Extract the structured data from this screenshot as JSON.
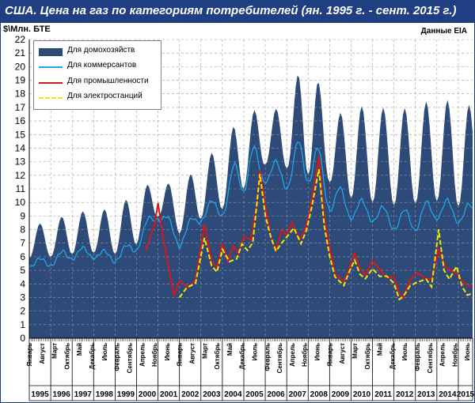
{
  "header": {
    "title": "США. Цена на газ по категориям потребителей (ян. 1995 г. - сент. 2015 г.)",
    "unit": "$\\Млн. БТЕ",
    "source": "Данные EIA"
  },
  "colors": {
    "title_bg": "#1f3f82",
    "households": "#2e4a78",
    "commercial": "#1ea8e8",
    "industrial": "#d61818",
    "power": "#f0e800",
    "grid": "#9a9a9a"
  },
  "chart_data": {
    "type": "area",
    "x_start": "1995-01",
    "x_end": "2015-09",
    "ylim": [
      0,
      22
    ],
    "yticks": [
      0,
      1,
      2,
      3,
      4,
      5,
      6,
      7,
      8,
      9,
      10,
      11,
      12,
      13,
      14,
      15,
      16,
      17,
      18,
      19,
      20,
      21,
      22
    ],
    "grid": true,
    "legend": "top-left",
    "month_tick_labels": [
      "Январь",
      "Август",
      "Март",
      "Октябрь",
      "Май",
      "Декабрь",
      "Июль",
      "Февраль",
      "Сентябрь",
      "Апрель",
      "Ноябрь",
      "Июнь",
      "Январь",
      "Август",
      "Март",
      "Октябрь",
      "Май",
      "Декабрь",
      "Июль",
      "Февраль",
      "Сентябрь",
      "Апрель",
      "Ноябрь",
      "Июнь",
      "Январь",
      "Август",
      "Март",
      "Октябрь",
      "Май",
      "Декабрь",
      "Июль",
      "Февраль",
      "Сентябрь",
      "Апрель",
      "Ноябрь",
      "Июнь"
    ],
    "year_labels": [
      "1995",
      "1996",
      "1997",
      "1998",
      "1999",
      "2000",
      "2001",
      "2002",
      "2003",
      "2004",
      "2005",
      "2006",
      "2007",
      "2008",
      "2009",
      "2010",
      "2011",
      "2012",
      "2013",
      "2014",
      "2015"
    ],
    "series": [
      {
        "name": "Для домохозяйств",
        "kind": "area",
        "winter": [
          5.9,
          6.0,
          6.2,
          6.3,
          6.2,
          6.9,
          9.0,
          7.7,
          8.8,
          9.5,
          11.0,
          12.8,
          12.5,
          12.0,
          11.5,
          10.3,
          10.0,
          9.8,
          9.9,
          10.1,
          9.7
        ],
        "summer": [
          8.4,
          8.5,
          9.4,
          9.3,
          9.7,
          10.7,
          11.9,
          10.9,
          13.2,
          14.1,
          17.0,
          16.6,
          17.2,
          21.5,
          16.1,
          17.1,
          17.1,
          16.9,
          17.0,
          17.9,
          17.2
        ]
      },
      {
        "name": "Для коммерсантов",
        "kind": "line",
        "base": [
          5.2,
          5.3,
          5.8,
          5.9,
          5.6,
          6.4,
          8.8,
          6.7,
          8.6,
          9.0,
          10.8,
          11.5,
          11.0,
          11.5,
          9.4,
          8.8,
          8.6,
          8.0,
          7.9,
          8.8,
          8.5
        ],
        "peak": [
          5.8,
          6.0,
          6.8,
          6.6,
          6.3,
          7.4,
          10.1,
          7.6,
          9.9,
          10.4,
          15.0,
          13.2,
          12.9,
          16.1,
          11.8,
          10.4,
          10.0,
          9.4,
          9.6,
          10.5,
          9.9
        ]
      },
      {
        "name": "Для промышленности",
        "kind": "line",
        "points": [
          [
            "2000-06",
            6.4
          ],
          [
            "2000-11",
            8.2
          ],
          [
            "2001-01",
            10.1
          ],
          [
            "2001-04",
            7.2
          ],
          [
            "2001-08",
            4.4
          ],
          [
            "2001-10",
            3.3
          ],
          [
            "2002-01",
            4.1
          ],
          [
            "2002-06",
            3.8
          ],
          [
            "2002-10",
            4.3
          ],
          [
            "2003-03",
            8.2
          ],
          [
            "2003-07",
            5.8
          ],
          [
            "2003-10",
            5.2
          ],
          [
            "2004-01",
            6.9
          ],
          [
            "2004-04",
            5.8
          ],
          [
            "2004-07",
            6.7
          ],
          [
            "2004-10",
            6.2
          ],
          [
            "2005-01",
            7.6
          ],
          [
            "2005-05",
            7.1
          ],
          [
            "2005-08",
            9.7
          ],
          [
            "2005-10",
            12.4
          ],
          [
            "2006-01",
            9.6
          ],
          [
            "2006-04",
            7.6
          ],
          [
            "2006-07",
            6.4
          ],
          [
            "2006-10",
            7.9
          ],
          [
            "2007-01",
            7.8
          ],
          [
            "2007-04",
            8.4
          ],
          [
            "2007-08",
            7.3
          ],
          [
            "2007-11",
            8.0
          ],
          [
            "2008-02",
            9.2
          ],
          [
            "2008-07",
            13.5
          ],
          [
            "2008-10",
            8.9
          ],
          [
            "2009-01",
            6.5
          ],
          [
            "2009-04",
            4.9
          ],
          [
            "2009-09",
            4.1
          ],
          [
            "2009-12",
            5.1
          ],
          [
            "2010-03",
            6.4
          ],
          [
            "2010-06",
            5.0
          ],
          [
            "2010-09",
            4.7
          ],
          [
            "2011-01",
            5.8
          ],
          [
            "2011-05",
            4.9
          ],
          [
            "2011-09",
            4.6
          ],
          [
            "2012-01",
            4.5
          ],
          [
            "2012-04",
            3.2
          ],
          [
            "2012-06",
            3.1
          ],
          [
            "2012-10",
            4.2
          ],
          [
            "2013-02",
            4.8
          ],
          [
            "2013-07",
            4.5
          ],
          [
            "2013-10",
            4.2
          ],
          [
            "2014-02",
            6.6
          ],
          [
            "2014-05",
            5.5
          ],
          [
            "2014-08",
            4.9
          ],
          [
            "2014-12",
            4.9
          ],
          [
            "2015-03",
            4.2
          ],
          [
            "2015-06",
            3.8
          ],
          [
            "2015-09",
            3.8
          ]
        ]
      },
      {
        "name": "Для электростанций",
        "kind": "dashed",
        "points": [
          [
            "2002-01",
            3.0
          ],
          [
            "2002-05",
            3.6
          ],
          [
            "2002-10",
            4.2
          ],
          [
            "2003-03",
            7.3
          ],
          [
            "2003-07",
            5.3
          ],
          [
            "2003-10",
            5.0
          ],
          [
            "2004-01",
            6.4
          ],
          [
            "2004-05",
            5.7
          ],
          [
            "2004-09",
            5.9
          ],
          [
            "2004-12",
            6.8
          ],
          [
            "2005-03",
            6.6
          ],
          [
            "2005-06",
            7.0
          ],
          [
            "2005-10",
            12.0
          ],
          [
            "2006-01",
            9.2
          ],
          [
            "2006-04",
            7.4
          ],
          [
            "2006-07",
            6.4
          ],
          [
            "2006-10",
            7.1
          ],
          [
            "2007-01",
            7.3
          ],
          [
            "2007-05",
            8.2
          ],
          [
            "2007-09",
            7.0
          ],
          [
            "2007-12",
            7.8
          ],
          [
            "2008-03",
            9.8
          ],
          [
            "2008-07",
            12.4
          ],
          [
            "2008-10",
            8.2
          ],
          [
            "2009-01",
            6.2
          ],
          [
            "2009-04",
            4.4
          ],
          [
            "2009-09",
            3.9
          ],
          [
            "2009-12",
            5.0
          ],
          [
            "2010-03",
            5.6
          ],
          [
            "2010-06",
            4.8
          ],
          [
            "2010-09",
            4.4
          ],
          [
            "2011-01",
            5.0
          ],
          [
            "2011-05",
            4.7
          ],
          [
            "2011-09",
            4.5
          ],
          [
            "2012-01",
            4.0
          ],
          [
            "2012-04",
            3.0
          ],
          [
            "2012-06",
            2.9
          ],
          [
            "2012-10",
            3.9
          ],
          [
            "2013-02",
            4.2
          ],
          [
            "2013-07",
            4.2
          ],
          [
            "2013-10",
            3.9
          ],
          [
            "2014-02",
            8.0
          ],
          [
            "2014-05",
            4.9
          ],
          [
            "2014-08",
            4.5
          ],
          [
            "2014-12",
            5.2
          ],
          [
            "2015-03",
            3.8
          ],
          [
            "2015-06",
            3.3
          ],
          [
            "2015-09",
            3.3
          ]
        ]
      }
    ]
  }
}
